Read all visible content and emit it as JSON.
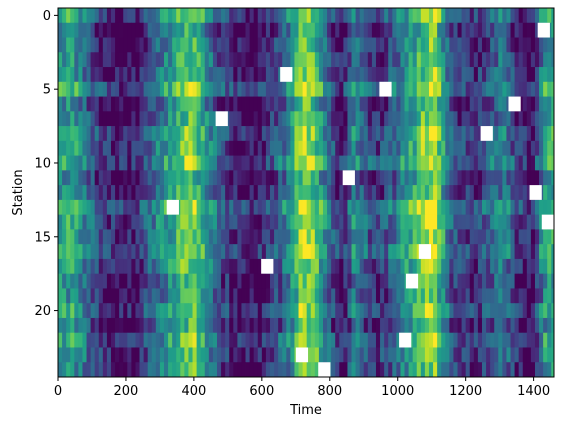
{
  "chart_data": {
    "type": "heatmap",
    "title": "",
    "xlabel": "Time",
    "ylabel": "Station",
    "colormap": "viridis",
    "xlim": [
      0,
      1460
    ],
    "ylim": [
      24.5,
      -0.5
    ],
    "x_ticks": [
      0,
      200,
      400,
      600,
      800,
      1000,
      1200,
      1400
    ],
    "y_ticks": [
      0,
      5,
      10,
      15,
      20
    ],
    "n_stations": 25,
    "n_time": 1460,
    "time_profile": {
      "x": [
        0,
        40,
        70,
        120,
        170,
        230,
        280,
        330,
        370,
        400,
        430,
        470,
        510,
        560,
        600,
        640,
        680,
        720,
        760,
        800,
        840,
        870,
        900,
        940,
        990,
        1040,
        1080,
        1110,
        1150,
        1180,
        1230,
        1270,
        1310,
        1350,
        1400,
        1430,
        1460
      ],
      "value": [
        0.55,
        0.6,
        0.45,
        0.2,
        0.05,
        0.1,
        0.35,
        0.55,
        0.75,
        0.8,
        0.55,
        0.3,
        0.15,
        0.05,
        0.08,
        0.25,
        0.45,
        0.9,
        0.7,
        0.3,
        0.05,
        0.45,
        0.3,
        0.15,
        0.35,
        0.6,
        0.8,
        0.85,
        0.35,
        0.2,
        0.15,
        0.3,
        0.45,
        0.15,
        0.05,
        0.55,
        0.6
      ]
    },
    "missing": [
      {
        "station": 1,
        "t0": 1412,
        "t1": 1448
      },
      {
        "station": 4,
        "t0": 654,
        "t1": 690
      },
      {
        "station": 5,
        "t0": 946,
        "t1": 982
      },
      {
        "station": 6,
        "t0": 1326,
        "t1": 1362
      },
      {
        "station": 7,
        "t0": 464,
        "t1": 500
      },
      {
        "station": 8,
        "t0": 1244,
        "t1": 1280
      },
      {
        "station": 11,
        "t0": 838,
        "t1": 874
      },
      {
        "station": 12,
        "t0": 1388,
        "t1": 1424
      },
      {
        "station": 13,
        "t0": 320,
        "t1": 356
      },
      {
        "station": 14,
        "t0": 1424,
        "t1": 1460
      },
      {
        "station": 16,
        "t0": 1062,
        "t1": 1098
      },
      {
        "station": 17,
        "t0": 598,
        "t1": 634
      },
      {
        "station": 18,
        "t0": 1024,
        "t1": 1060
      },
      {
        "station": 22,
        "t0": 1004,
        "t1": 1040
      },
      {
        "station": 23,
        "t0": 700,
        "t1": 736
      },
      {
        "station": 24,
        "t0": 766,
        "t1": 802
      }
    ]
  }
}
